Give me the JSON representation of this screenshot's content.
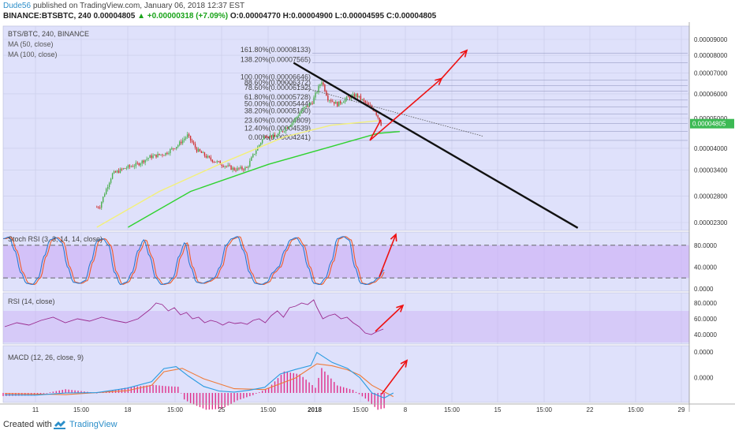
{
  "header": {
    "author": "Dude56",
    "published": "published on TradingView.com, January 06, 2018 12:37 EST",
    "symbol_line": "BINANCE:BTSBTC, 240",
    "last": "0.00004805",
    "change": "▲ +0.00000318 (+7.09%)",
    "open": "O:0.00004770",
    "high": "H:0.00004900",
    "low": "L:0.00004595",
    "close": "C:0.00004805"
  },
  "footer": {
    "created_with": "Created with",
    "brand": "TradingView"
  },
  "colors": {
    "panel_bg": "#dfe1fb",
    "band_fill": "#c9a8f5",
    "ma50": "#f3f079",
    "ma100": "#2fd22f",
    "trend": "#111111",
    "arrow": "#ee1111",
    "stoch_k": "#2a7bd1",
    "stoch_d": "#ef5b2a",
    "rsi": "#9a2b8f",
    "macd": "#2a9be0",
    "signal": "#ef7a38",
    "hist": "#e0308a",
    "price_badge": "#3cba54",
    "up": "#4caf50",
    "down": "#d03030"
  },
  "chart_data": [
    {
      "type": "candlestick",
      "title": "BTS/BTC, 240, BINANCE",
      "legend": [
        "MA (50, close)",
        "MA (100, close)"
      ],
      "y_scale": "log",
      "ylim": [
        2.21e-05,
        9.6e-06
      ],
      "yticks": [
        "0.00009000",
        "0.00008000",
        "0.00007000",
        "0.00006000",
        "0.00005000",
        "0.00004000",
        "0.00003400",
        "0.00002800",
        "0.00002300"
      ],
      "ytick_values": [
        9e-05,
        8e-05,
        7e-05,
        6e-05,
        5e-05,
        4e-05,
        3.4e-05,
        2.8e-05,
        2.3e-05
      ],
      "last_price_label": "0.00004805",
      "last_price": 4.805e-05,
      "fib_levels": [
        {
          "label": "161.80%(0.00008133)",
          "value": 8.133e-05
        },
        {
          "label": "138.20%(0.00007565)",
          "value": 7.565e-05
        },
        {
          "label": "100.00%(0.00006646)",
          "value": 6.646e-05
        },
        {
          "label": "88.60%(0.00006372)",
          "value": 6.372e-05
        },
        {
          "label": "78.60%(0.00006132)",
          "value": 6.132e-05
        },
        {
          "label": "61.80%(0.00005728)",
          "value": 5.728e-05
        },
        {
          "label": "50.00%(0.00005444)",
          "value": 5.444e-05
        },
        {
          "label": "38.20%(0.00005160)",
          "value": 5.16e-05
        },
        {
          "label": "23.60%(0.00004809)",
          "value": 4.809e-05
        },
        {
          "label": "12.40%(0.00004539)",
          "value": 4.539e-05
        },
        {
          "label": "0.00%(0.00004241)",
          "value": 4.241e-05
        }
      ],
      "price_path": [
        [
          0,
          2.2e-05
        ],
        [
          20,
          2.3e-05
        ],
        [
          38,
          2.36e-05
        ],
        [
          50,
          2.48e-05
        ],
        [
          62,
          2.6e-05
        ],
        [
          70,
          3.3e-05
        ],
        [
          78,
          3.45e-05
        ],
        [
          86,
          3.55e-05
        ],
        [
          94,
          3.75e-05
        ],
        [
          104,
          3.85e-05
        ],
        [
          112,
          4.1e-05
        ],
        [
          118,
          4.4e-05
        ],
        [
          124,
          3.95e-05
        ],
        [
          132,
          3.7e-05
        ],
        [
          140,
          3.55e-05
        ],
        [
          148,
          3.42e-05
        ],
        [
          156,
          3.45e-05
        ],
        [
          162,
          3.95e-05
        ],
        [
          168,
          4.42e-05
        ],
        [
          174,
          4.35e-05
        ],
        [
          180,
          4.6e-05
        ],
        [
          186,
          4.9e-05
        ],
        [
          192,
          5.35e-05
        ],
        [
          198,
          5.65e-05
        ],
        [
          204,
          6.6e-05
        ],
        [
          208,
          5.8e-05
        ],
        [
          214,
          5.55e-05
        ],
        [
          220,
          5.8e-05
        ],
        [
          226,
          5.95e-05
        ],
        [
          232,
          5.6e-05
        ],
        [
          238,
          5.3e-05
        ],
        [
          242,
          4.8e-05
        ],
        [
          246,
          4.55e-05
        ],
        [
          250,
          4.7e-05
        ],
        [
          254,
          4.8e-05
        ]
      ],
      "ma50_path": [
        [
          60,
          2.22e-05
        ],
        [
          100,
          2.9e-05
        ],
        [
          140,
          3.58e-05
        ],
        [
          180,
          4.35e-05
        ],
        [
          210,
          4.75e-05
        ],
        [
          240,
          4.909e-05
        ]
      ],
      "ma100_path": [
        [
          80,
          2.22e-05
        ],
        [
          120,
          2.9e-05
        ],
        [
          170,
          3.55e-05
        ],
        [
          210,
          4.05e-05
        ],
        [
          240,
          4.47e-05
        ],
        [
          254,
          4.53e-05
        ]
      ],
      "trendline": [
        [
          186,
          7.56e-05
        ],
        [
          368,
          2.21e-05
        ]
      ],
      "arrows": [
        [
          [
            236,
            4.241e-05
          ],
          [
            280,
            6.73e-05
          ]
        ],
        [
          [
            280,
            6.73e-05
          ],
          [
            296,
            8.3e-05
          ]
        ]
      ]
    },
    {
      "type": "line",
      "title": "Stoch RSI (3, 3, 14, 14, close)",
      "ylim": [
        0,
        100
      ],
      "yticks": [
        "80.0000",
        "40.0000",
        "0.0000"
      ],
      "ytick_values": [
        80,
        40,
        0
      ],
      "band": [
        20,
        80
      ],
      "arrow": [
        [
          242,
          22
        ],
        [
          252,
          100
        ]
      ]
    },
    {
      "type": "line",
      "title": "RSI (14, close)",
      "ylim": [
        30,
        90
      ],
      "yticks": [
        "80.0000",
        "60.0000",
        "40.0000"
      ],
      "ytick_values": [
        80,
        60,
        40
      ],
      "band": [
        30,
        70
      ],
      "points": [
        [
          0,
          50
        ],
        [
          8,
          55
        ],
        [
          16,
          52
        ],
        [
          24,
          58
        ],
        [
          32,
          62
        ],
        [
          40,
          55
        ],
        [
          48,
          60
        ],
        [
          56,
          57
        ],
        [
          64,
          62
        ],
        [
          72,
          58
        ],
        [
          80,
          55
        ],
        [
          88,
          60
        ],
        [
          96,
          72
        ],
        [
          100,
          80
        ],
        [
          104,
          78
        ],
        [
          108,
          70
        ],
        [
          112,
          74
        ],
        [
          116,
          65
        ],
        [
          120,
          68
        ],
        [
          124,
          60
        ],
        [
          128,
          62
        ],
        [
          132,
          55
        ],
        [
          136,
          58
        ],
        [
          140,
          56
        ],
        [
          144,
          52
        ],
        [
          148,
          56
        ],
        [
          152,
          54
        ],
        [
          156,
          55
        ],
        [
          160,
          53
        ],
        [
          164,
          58
        ],
        [
          168,
          60
        ],
        [
          172,
          55
        ],
        [
          176,
          64
        ],
        [
          180,
          70
        ],
        [
          184,
          62
        ],
        [
          188,
          74
        ],
        [
          192,
          76
        ],
        [
          196,
          80
        ],
        [
          200,
          78
        ],
        [
          204,
          84
        ],
        [
          206,
          75
        ],
        [
          210,
          60
        ],
        [
          214,
          64
        ],
        [
          218,
          66
        ],
        [
          222,
          60
        ],
        [
          226,
          62
        ],
        [
          230,
          55
        ],
        [
          234,
          50
        ],
        [
          238,
          42
        ],
        [
          242,
          40
        ],
        [
          246,
          44
        ],
        [
          250,
          47
        ]
      ],
      "arrow": [
        [
          238,
          44
        ],
        [
          256,
          65
        ]
      ]
    },
    {
      "type": "line",
      "title": "MACD (12, 26, close, 9)",
      "ylim": [
        -1.33e-06,
        4e-07
      ],
      "yticks": [
        "0.0000",
        "0.0000"
      ],
      "ytick_values": [
        4e-07,
        -5e-07
      ],
      "macd": [
        [
          0,
          -1.12e-06
        ],
        [
          20,
          -1.13e-06
        ],
        [
          40,
          -1.05e-06
        ],
        [
          60,
          -1.04e-06
        ],
        [
          80,
          -8.8e-07
        ],
        [
          96,
          -6.5e-07
        ],
        [
          104,
          -1.9e-07
        ],
        [
          112,
          -1.2e-07
        ],
        [
          120,
          -4.5e-07
        ],
        [
          130,
          -8.2e-07
        ],
        [
          140,
          -9.8e-07
        ],
        [
          150,
          -1.02e-06
        ],
        [
          160,
          -9.5e-07
        ],
        [
          170,
          -8.5e-07
        ],
        [
          180,
          -3.8e-07
        ],
        [
          190,
          -2.2e-07
        ],
        [
          200,
          -8e-08
        ],
        [
          204,
          3.8e-07
        ],
        [
          214,
          3e-08
        ],
        [
          224,
          -1.8e-07
        ],
        [
          232,
          -5.1e-07
        ],
        [
          240,
          -1.05e-06
        ],
        [
          248,
          -1.23e-06
        ],
        [
          254,
          -1.05e-06
        ]
      ],
      "signal": [
        [
          0,
          -1.07e-06
        ],
        [
          40,
          -1.11e-06
        ],
        [
          80,
          -9.7e-07
        ],
        [
          96,
          -7.8e-07
        ],
        [
          104,
          -3e-07
        ],
        [
          116,
          -1.8e-07
        ],
        [
          130,
          -5.5e-07
        ],
        [
          150,
          -9e-07
        ],
        [
          170,
          -9.3e-07
        ],
        [
          190,
          -5.2e-07
        ],
        [
          204,
          -2e-08
        ],
        [
          214,
          -9e-08
        ],
        [
          224,
          -2.3e-07
        ],
        [
          232,
          -4.2e-07
        ],
        [
          240,
          -7.8e-07
        ],
        [
          254,
          -1.18e-06
        ]
      ],
      "arrow": [
        [
          238,
          -1.09e-06
        ],
        [
          256,
          1e-07
        ]
      ]
    }
  ],
  "x_axis": {
    "ticks": [
      "11",
      "15:00",
      "18",
      "15:00",
      "25",
      "15:00",
      "2018",
      "15:00",
      "8",
      "15:00",
      "15",
      "15:00",
      "22",
      "15:00",
      "29"
    ],
    "bold": [
      "2018"
    ]
  }
}
